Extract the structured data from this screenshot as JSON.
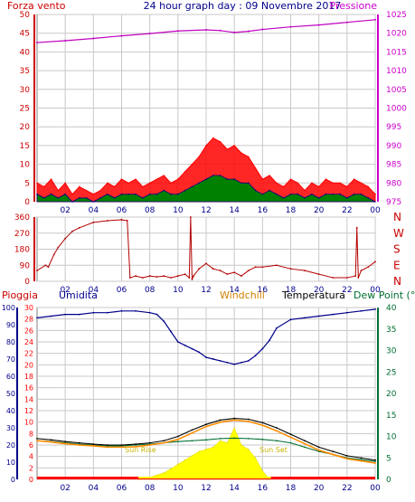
{
  "header": {
    "wind_label": "Forza vento",
    "title": "24 hour graph day : 09 Novembre 2017",
    "pressure_label": "Pressione"
  },
  "colors": {
    "frame": "#808080",
    "grid": "#c8c8c8",
    "wind_axis": "#cc0000",
    "pressure_axis": "#cc00cc",
    "humidity_axis": "#00008b",
    "temp_axis": "#006e32",
    "title": "#00008b",
    "wind_gust": "#ff0000",
    "wind_avg": "#008000",
    "wind_dark": "#000080",
    "pressure": "#c000c0",
    "direction": "#b40000",
    "humidity": "#00008b",
    "temperature": "#000000",
    "windchill": "#ff8c00",
    "dewpoint": "#006e32",
    "solar": "#ffff00",
    "rain": "#ff0000",
    "sun_text": "#c8b400"
  },
  "chart_data": [
    {
      "type": "line",
      "id": "wind_pressure",
      "x_ticks": [
        "02",
        "04",
        "06",
        "08",
        "10",
        "12",
        "14",
        "16",
        "18",
        "20",
        "22",
        "00"
      ],
      "xlim": [
        0,
        24
      ],
      "ylim_left": [
        0,
        50
      ],
      "yticks_left": [
        "0",
        "5",
        "10",
        "15",
        "20",
        "25",
        "30",
        "35",
        "40",
        "45",
        "50"
      ],
      "ylim_right": [
        975,
        1025
      ],
      "yticks_right": [
        "975",
        "980",
        "985",
        "990",
        "995",
        "1000",
        "1005",
        "1010",
        "1015",
        "1020",
        "1025"
      ],
      "series": [
        {
          "name": "Forza vento",
          "axis": "left",
          "style": "gust",
          "x": [
            0,
            0.5,
            1,
            1.5,
            2,
            2.5,
            3,
            3.5,
            4,
            4.5,
            5,
            5.5,
            6,
            6.5,
            7,
            7.5,
            8,
            8.5,
            9,
            9.5,
            10,
            10.5,
            11,
            11.5,
            12,
            12.5,
            13,
            13.5,
            14,
            14.5,
            15,
            15.5,
            16,
            16.5,
            17,
            17.5,
            18,
            18.5,
            19,
            19.5,
            20,
            20.5,
            21,
            21.5,
            22,
            22.5,
            23,
            23.5,
            24
          ],
          "y": [
            5,
            4,
            6,
            3,
            5,
            2,
            4,
            3,
            2,
            3,
            5,
            4,
            6,
            5,
            6,
            4,
            5,
            6,
            7,
            5,
            6,
            8,
            10,
            12,
            15,
            17,
            16,
            14,
            15,
            13,
            12,
            9,
            6,
            7,
            5,
            4,
            6,
            5,
            3,
            5,
            4,
            6,
            5,
            5,
            4,
            6,
            5,
            4,
            2
          ]
        },
        {
          "name": "avg",
          "axis": "left",
          "style": "avg",
          "x": [
            0,
            0.5,
            1,
            1.5,
            2,
            2.5,
            3,
            3.5,
            4,
            4.5,
            5,
            5.5,
            6,
            6.5,
            7,
            7.5,
            8,
            8.5,
            9,
            9.5,
            10,
            10.5,
            11,
            11.5,
            12,
            12.5,
            13,
            13.5,
            14,
            14.5,
            15,
            15.5,
            16,
            16.5,
            17,
            17.5,
            18,
            18.5,
            19,
            19.5,
            20,
            20.5,
            21,
            21.5,
            22,
            22.5,
            23,
            23.5,
            24
          ],
          "y": [
            2,
            1,
            2,
            1,
            2,
            0,
            1,
            1,
            0,
            1,
            2,
            1,
            2,
            2,
            2,
            1,
            2,
            2,
            3,
            2,
            2,
            3,
            4,
            5,
            6,
            7,
            7,
            6,
            6,
            5,
            5,
            3,
            2,
            3,
            2,
            1,
            2,
            2,
            1,
            2,
            1,
            2,
            2,
            2,
            1,
            2,
            2,
            1,
            0
          ]
        },
        {
          "name": "Pressione",
          "axis": "right",
          "style": "pressure",
          "x": [
            0,
            2,
            4,
            6,
            8,
            10,
            12,
            13,
            14,
            15,
            16,
            18,
            20,
            22,
            24
          ],
          "y": [
            1017.5,
            1018.0,
            1018.6,
            1019.3,
            1019.9,
            1020.6,
            1020.9,
            1020.7,
            1020.2,
            1020.5,
            1021.0,
            1021.7,
            1022.2,
            1022.9,
            1023.6
          ]
        }
      ]
    },
    {
      "type": "line",
      "id": "wind_direction",
      "x_ticks": [
        "02",
        "04",
        "06",
        "08",
        "10",
        "12",
        "14",
        "16",
        "18",
        "20",
        "22",
        "00"
      ],
      "xlim": [
        0,
        24
      ],
      "ylim": [
        0,
        360
      ],
      "yticks_left": [
        "0",
        "90",
        "180",
        "270",
        "360"
      ],
      "yticks_right": [
        "N",
        "E",
        "S",
        "W",
        "N"
      ],
      "series": [
        {
          "name": "direction",
          "x": [
            0,
            0.6,
            0.8,
            1.2,
            1.5,
            2,
            2.5,
            3,
            4,
            5,
            6,
            6.4,
            6.6,
            7,
            7.5,
            8,
            8.5,
            9,
            9.5,
            10,
            10.5,
            10.8,
            10.9,
            11,
            11.1,
            11.5,
            12,
            12.5,
            13,
            13.5,
            14,
            14.5,
            15,
            15.5,
            16,
            17,
            18,
            19,
            20,
            21,
            22,
            22.6,
            22.7,
            22.8,
            23,
            23.5,
            24
          ],
          "y": [
            60,
            90,
            80,
            150,
            190,
            240,
            280,
            300,
            330,
            340,
            345,
            340,
            20,
            30,
            20,
            30,
            25,
            30,
            20,
            30,
            40,
            20,
            360,
            10,
            30,
            70,
            100,
            70,
            60,
            40,
            50,
            30,
            60,
            80,
            80,
            90,
            70,
            60,
            40,
            20,
            20,
            30,
            300,
            20,
            60,
            80,
            110
          ]
        }
      ]
    },
    {
      "type": "line",
      "id": "temperature",
      "x_ticks": [
        "02",
        "04",
        "06",
        "08",
        "10",
        "12",
        "14",
        "16",
        "18",
        "20",
        "22",
        "00"
      ],
      "xlim": [
        0,
        24
      ],
      "legend": [
        "Pioggia",
        "Umidita",
        "Windchill",
        "Temperatura",
        "Dew Point (°C"
      ],
      "ylim_left": [
        0,
        100
      ],
      "yticks_left_humidity": [
        "0",
        "10",
        "20",
        "30",
        "40",
        "50",
        "60",
        "70",
        "80",
        "90",
        "100"
      ],
      "yticks_left_rain": [
        "0",
        "2",
        "4",
        "6",
        "8",
        "10",
        "12",
        "14",
        "16",
        "18",
        "20",
        "22",
        "24",
        "26",
        "28",
        "30"
      ],
      "ylim_right": [
        0,
        40
      ],
      "yticks_right": [
        "0",
        "5",
        "10",
        "15",
        "20",
        "25",
        "30",
        "35",
        "40"
      ],
      "annotations": [
        "Sun Rise",
        "Sun Set"
      ],
      "series": [
        {
          "name": "Umidita",
          "axis": "left",
          "x": [
            0,
            1,
            2,
            3,
            4,
            5,
            6,
            7,
            8,
            8.5,
            9,
            9.5,
            10,
            10.5,
            11,
            11.5,
            12,
            12.5,
            13,
            13.5,
            14,
            14.5,
            15,
            15.5,
            16,
            16.5,
            17,
            18,
            19,
            20,
            21,
            22,
            23,
            24
          ],
          "y": [
            94,
            95,
            96,
            96,
            97,
            97,
            98,
            98,
            97,
            96,
            92,
            86,
            80,
            78,
            76,
            74,
            71,
            70,
            69,
            68,
            67,
            68,
            69,
            72,
            76,
            81,
            88,
            93,
            94,
            95,
            96,
            97,
            98,
            99
          ]
        },
        {
          "name": "Temperatura",
          "axis": "right",
          "x": [
            0,
            1,
            2,
            3,
            4,
            5,
            6,
            7,
            8,
            9,
            10,
            11,
            12,
            13,
            14,
            15,
            16,
            17,
            18,
            19,
            20,
            21,
            22,
            23,
            24
          ],
          "y": [
            9.5,
            9.2,
            8.8,
            8.5,
            8.2,
            8.0,
            8.0,
            8.2,
            8.5,
            9.0,
            10.0,
            11.5,
            12.8,
            13.8,
            14.2,
            14.0,
            13.2,
            12.0,
            10.5,
            9.0,
            7.5,
            6.5,
            5.5,
            5.0,
            4.5
          ]
        },
        {
          "name": "Windchill",
          "axis": "right",
          "x": [
            0,
            1,
            2,
            3,
            4,
            5,
            6,
            7,
            8,
            9,
            10,
            11,
            12,
            13,
            14,
            15,
            16,
            17,
            18,
            19,
            20,
            21,
            22,
            23,
            24
          ],
          "y": [
            9.0,
            8.7,
            8.3,
            8.0,
            7.8,
            7.5,
            7.5,
            7.6,
            8.0,
            8.5,
            9.3,
            10.8,
            12.3,
            13.3,
            13.8,
            13.5,
            12.6,
            11.3,
            9.8,
            8.3,
            6.8,
            5.8,
            4.8,
            4.3,
            3.8
          ]
        },
        {
          "name": "Dew Point (°C",
          "axis": "right",
          "x": [
            0,
            1,
            2,
            3,
            4,
            5,
            6,
            7,
            8,
            9,
            10,
            11,
            12,
            13,
            14,
            15,
            16,
            17,
            18,
            19,
            20,
            21,
            22,
            23,
            24
          ],
          "y": [
            9.0,
            8.8,
            8.5,
            8.2,
            8.0,
            7.8,
            7.8,
            8.0,
            8.2,
            8.5,
            8.8,
            9.0,
            9.2,
            9.5,
            9.6,
            9.5,
            9.3,
            9.0,
            8.5,
            7.5,
            6.5,
            5.8,
            5.0,
            4.6,
            4.2
          ]
        },
        {
          "name": "solar",
          "axis": "right",
          "x": [
            7.2,
            8,
            8.5,
            9,
            9.5,
            10,
            10.5,
            11,
            11.5,
            12,
            12.5,
            13,
            13.5,
            14,
            14.5,
            15,
            15.5,
            16,
            16.5
          ],
          "y": [
            0,
            0.5,
            1,
            1.5,
            2.5,
            3.5,
            4.5,
            5.5,
            6.5,
            7,
            7.5,
            9,
            8.5,
            12,
            8,
            7,
            5,
            2,
            0
          ]
        },
        {
          "name": "Pioggia",
          "axis": "left",
          "x": [
            0,
            24
          ],
          "y": [
            0,
            0
          ]
        }
      ]
    }
  ]
}
